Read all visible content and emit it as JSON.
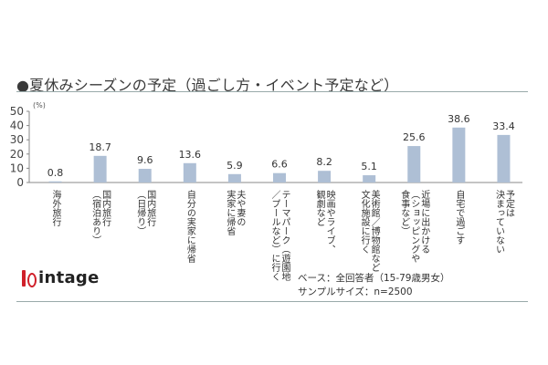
{
  "title": "●夏休みシーズンの予定（過ごし方・イベント予定など）",
  "brand": "intage",
  "notes": {
    "base": "ベース：全回答者（15-79歳男女）",
    "sample": "サンプルサイズ：n=2500"
  },
  "colors": {
    "bar": "#aebfd5",
    "axis": "#888888",
    "rule": "#99aaaa",
    "logo": "#d0202a"
  },
  "chart_data": {
    "type": "bar",
    "yunit": "(%)",
    "ylim": [
      0,
      50
    ],
    "yticks": [
      0,
      10,
      20,
      30,
      40,
      50
    ],
    "grid": false,
    "categories": [
      "海外旅行",
      "国内旅行（宿泊あり）",
      "国内旅行（日帰り）",
      "自分の実家に帰省",
      "夫や妻の実家に帰省",
      "テーマパーク（遊園地／プールなど）に行く",
      "映画やライブ、観劇など",
      "美術館／博物館など文化施設に行く",
      "近場に出かける（ショッピングや食事など）",
      "自宅で過ごす",
      "予定は決まっていない"
    ],
    "category_lines": [
      [
        "海外旅行"
      ],
      [
        "国内旅行",
        "（宿泊あり）"
      ],
      [
        "国内旅行",
        "（日帰り）"
      ],
      [
        "自分の実家に帰省"
      ],
      [
        "夫や妻の",
        "実家に帰省"
      ],
      [
        "テーマパーク（遊園地",
        "／プールなど）に行く"
      ],
      [
        "映画やライブ、",
        "観劇など"
      ],
      [
        "美術館／博物館など",
        "文化施設に行く"
      ],
      [
        "近場に出かける",
        "（ショッピングや",
        "食事など）"
      ],
      [
        "自宅で過ごす"
      ],
      [
        "予定は",
        "決まっていない"
      ]
    ],
    "values": [
      0.8,
      18.7,
      9.6,
      13.6,
      5.9,
      6.6,
      8.2,
      5.1,
      25.6,
      38.6,
      33.4
    ],
    "value_labels": [
      "0.8",
      "18.7",
      "9.6",
      "13.6",
      "5.9",
      "6.6",
      "8.2",
      "5.1",
      "25.6",
      "38.6",
      "33.4"
    ]
  }
}
